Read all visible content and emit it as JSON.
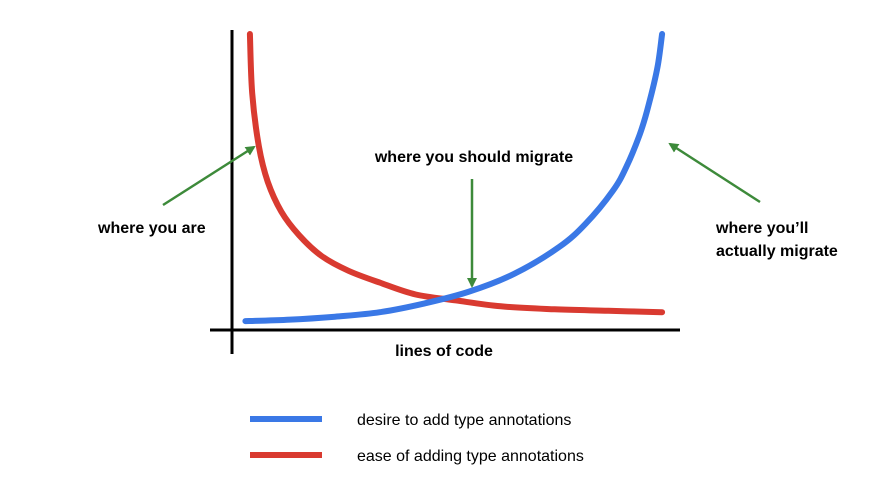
{
  "chart_data": {
    "type": "line",
    "title": "",
    "xlabel": "lines of code",
    "ylabel": "",
    "xlim": [
      0,
      1
    ],
    "ylim": [
      0,
      1
    ],
    "grid": false,
    "legend_position": "bottom",
    "series": [
      {
        "name": "desire to add type annotations",
        "color": "#3a78e6",
        "x": [
          0.03,
          0.13,
          0.23,
          0.33,
          0.43,
          0.53,
          0.63,
          0.73,
          0.79,
          0.85,
          0.88,
          0.91,
          0.93,
          0.95,
          0.96
        ],
        "y": [
          0.03,
          0.035,
          0.045,
          0.06,
          0.09,
          0.13,
          0.19,
          0.28,
          0.36,
          0.47,
          0.55,
          0.66,
          0.76,
          0.89,
          1.0
        ]
      },
      {
        "name": "ease of adding type annotations",
        "color": "#d93a30",
        "x": [
          0.04,
          0.045,
          0.06,
          0.08,
          0.11,
          0.15,
          0.2,
          0.26,
          0.33,
          0.41,
          0.5,
          0.6,
          0.72,
          0.84,
          0.96
        ],
        "y": [
          1.0,
          0.8,
          0.62,
          0.5,
          0.4,
          0.32,
          0.25,
          0.2,
          0.16,
          0.12,
          0.1,
          0.08,
          0.07,
          0.065,
          0.06
        ]
      }
    ],
    "annotations": [
      {
        "id": "where-you-are",
        "text": "where you are",
        "lines": [
          "where you are"
        ],
        "target": [
          0.06,
          0.62
        ]
      },
      {
        "id": "where-you-should-migrate",
        "text": "where you should migrate",
        "lines": [
          "where you should migrate"
        ],
        "target": [
          0.47,
          0.12
        ]
      },
      {
        "id": "where-youll-actually-migrate",
        "text": "where you’ll actually migrate",
        "lines": [
          "where you’ll",
          "actually migrate"
        ],
        "target": [
          0.91,
          0.63
        ]
      }
    ],
    "annotation_arrow_color": "#3d8a3a",
    "axis_color": "#000000"
  }
}
